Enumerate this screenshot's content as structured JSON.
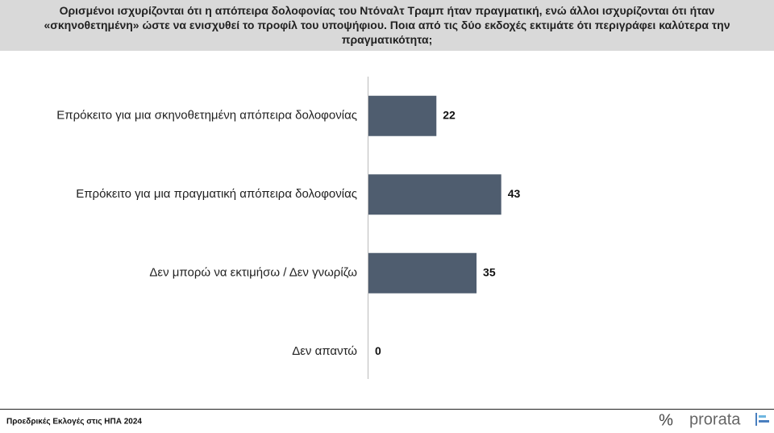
{
  "chart_data": {
    "type": "bar",
    "orientation": "horizontal",
    "title": "Ορισμένοι ισχυρίζονται ότι η απόπειρα δολοφονίας του Ντόναλτ Τραμπ ήταν πραγματική, ενώ άλλοι ισχυρίζονται ότι ήταν «σκηνοθετημένη» ώστε να ενισχυθεί το προφίλ του υποψήφιου. Ποια από τις δύο εκδοχές εκτιμάτε ότι περιγράφει καλύτερα την πραγματικότητα;",
    "categories": [
      "Επρόκειτο για μια σκηνοθετημένη απόπειρα δολοφονίας",
      "Επρόκειτο για μια πραγματική απόπειρα δολοφονίας",
      "Δεν μπορώ να εκτιμήσω / Δεν γνωρίζω",
      "Δεν απαντώ"
    ],
    "values": [
      22,
      43,
      35,
      0
    ],
    "color": "#4f5d6f"
  },
  "footer": {
    "text": "Προεδρικές Εκλογές στις ΗΠΑ 2024",
    "logo_symbol": "%",
    "logo": "prorata"
  }
}
